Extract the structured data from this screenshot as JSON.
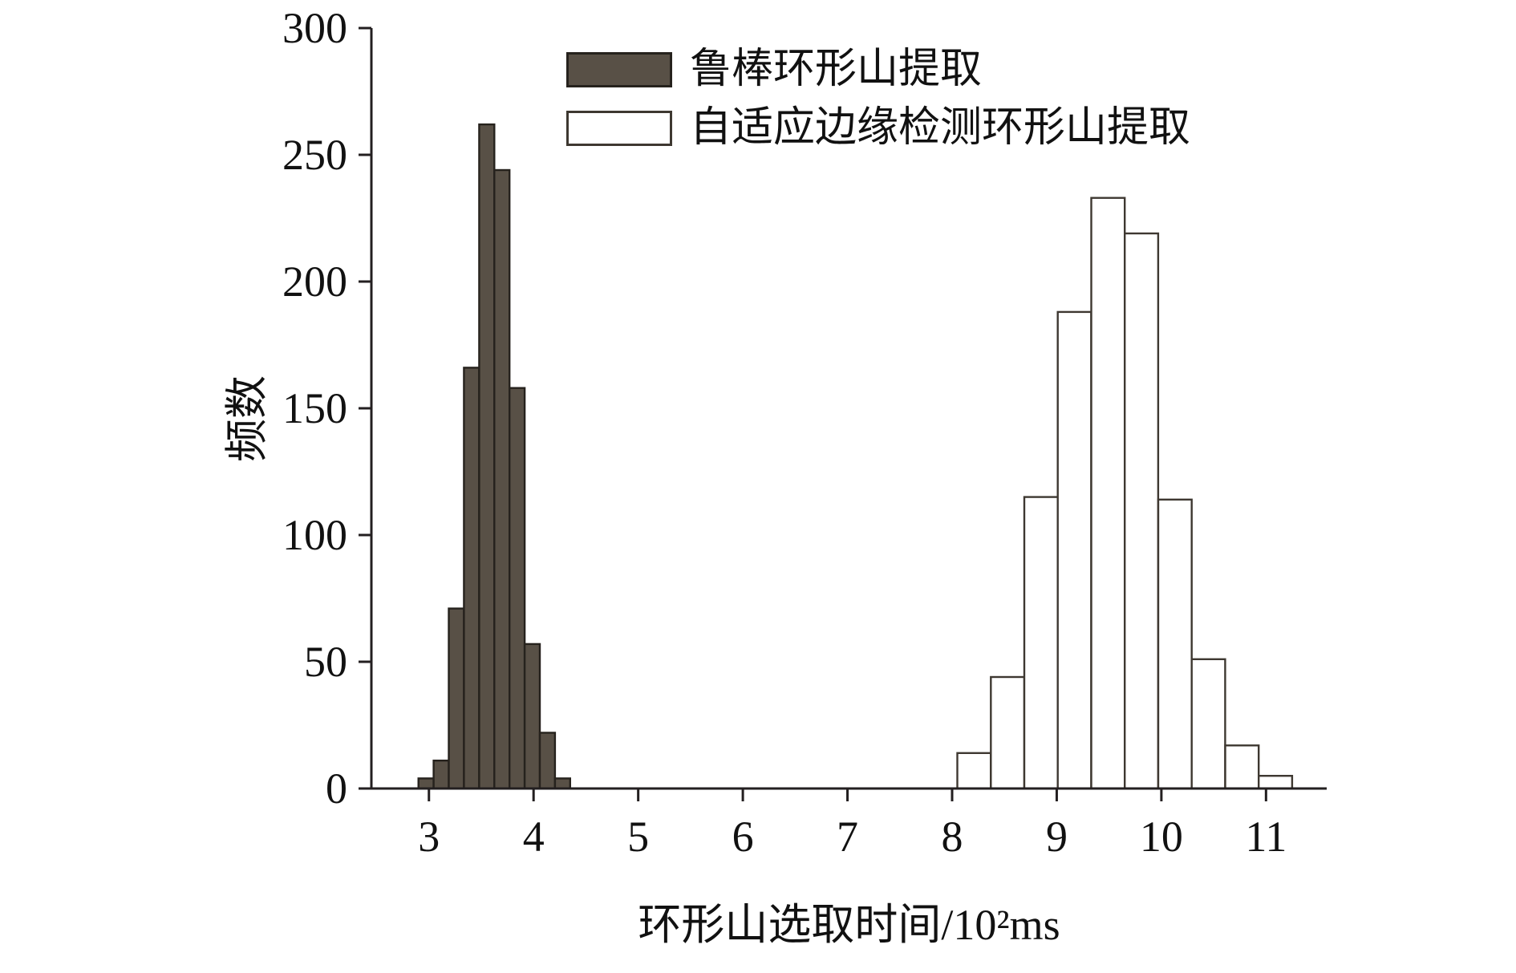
{
  "figure": {
    "background": "#ffffff",
    "axis_color": "#231f20"
  },
  "chart_data": {
    "type": "bar",
    "subtype": "histogram",
    "title": "",
    "xlabel": "环形山选取时间/10²ms",
    "ylabel": "频数",
    "xlim": [
      2.45,
      11.58
    ],
    "ylim": [
      0,
      300
    ],
    "x_ticks": [
      3,
      4,
      5,
      6,
      7,
      8,
      9,
      10,
      11
    ],
    "y_ticks": [
      0,
      50,
      100,
      150,
      200,
      250,
      300
    ],
    "grid": false,
    "legend_position": "top-center-inside",
    "series": [
      {
        "name": "鲁棒环形山提取",
        "bin_start": 2.9,
        "bin_width": 0.145,
        "values": [
          4,
          11,
          71,
          166,
          262,
          244,
          158,
          57,
          22,
          4
        ],
        "fill": "#585046",
        "stroke": "#26221d"
      },
      {
        "name": "自适应边缘检测环形山提取",
        "bin_start": 8.05,
        "bin_width": 0.32,
        "values": [
          14,
          44,
          115,
          188,
          233,
          219,
          114,
          51,
          17,
          5
        ],
        "fill": "#ffffff",
        "stroke": "#3e3831"
      }
    ]
  }
}
